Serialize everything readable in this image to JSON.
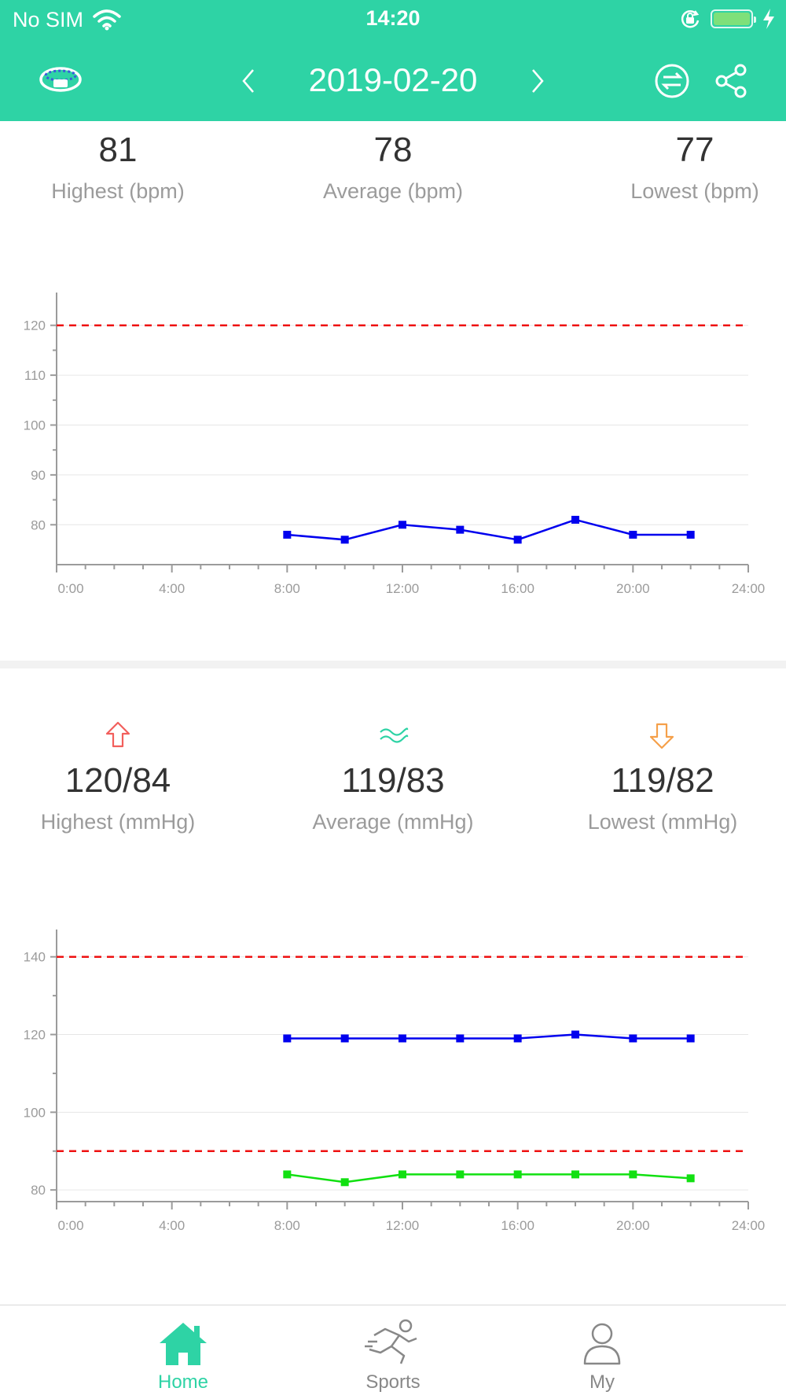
{
  "status_bar": {
    "carrier": "No SIM",
    "time": "14:20"
  },
  "header": {
    "date": "2019-02-20"
  },
  "heart_rate": {
    "stats": [
      {
        "value": "81",
        "label": "Highest (bpm)"
      },
      {
        "value": "78",
        "label": "Average (bpm)"
      },
      {
        "value": "77",
        "label": "Lowest (bpm)"
      }
    ]
  },
  "blood_pressure": {
    "stats": [
      {
        "value": "120/84",
        "label": "Highest (mmHg)",
        "icon": "arrow-up-icon",
        "color": "#f25f5c"
      },
      {
        "value": "119/83",
        "label": "Average (mmHg)",
        "icon": "wave-icon",
        "color": "#2ed3a5"
      },
      {
        "value": "119/82",
        "label": "Lowest (mmHg)",
        "icon": "arrow-down-icon",
        "color": "#f5a04a"
      }
    ]
  },
  "chart_data": [
    {
      "type": "line",
      "x_tick_labels": [
        "0:00",
        "4:00",
        "8:00",
        "12:00",
        "16:00",
        "20:00",
        "24:00"
      ],
      "y_ticks": [
        80,
        90,
        100,
        110,
        120
      ],
      "xlim": [
        0,
        24
      ],
      "ylim": [
        72,
        125
      ],
      "reference_lines": [
        120
      ],
      "grid": true,
      "series": [
        {
          "color": "#0000ee",
          "x": [
            8,
            10,
            12,
            14,
            16,
            18,
            20,
            22
          ],
          "y": [
            78,
            77,
            80,
            79,
            77,
            81,
            78,
            78
          ]
        }
      ]
    },
    {
      "type": "line",
      "x_tick_labels": [
        "0:00",
        "4:00",
        "8:00",
        "12:00",
        "16:00",
        "20:00",
        "24:00"
      ],
      "y_ticks": [
        80,
        100,
        120,
        140
      ],
      "xlim": [
        0,
        24
      ],
      "ylim": [
        77,
        145
      ],
      "reference_lines": [
        140,
        90
      ],
      "grid": true,
      "series": [
        {
          "color": "#0000ee",
          "x": [
            8,
            10,
            12,
            14,
            16,
            18,
            20,
            22
          ],
          "y": [
            119,
            119,
            119,
            119,
            119,
            120,
            119,
            119
          ]
        },
        {
          "color": "#11e011",
          "x": [
            8,
            10,
            12,
            14,
            16,
            18,
            20,
            22
          ],
          "y": [
            84,
            82,
            84,
            84,
            84,
            84,
            84,
            83
          ]
        }
      ]
    }
  ],
  "tab_bar": {
    "items": [
      {
        "label": "Home",
        "icon": "home-icon",
        "active": true
      },
      {
        "label": "Sports",
        "icon": "running-icon",
        "active": false
      },
      {
        "label": "My",
        "icon": "person-icon",
        "active": false
      }
    ]
  },
  "colors": {
    "accent": "#2ed3a5",
    "reference_line": "#ee1111"
  }
}
